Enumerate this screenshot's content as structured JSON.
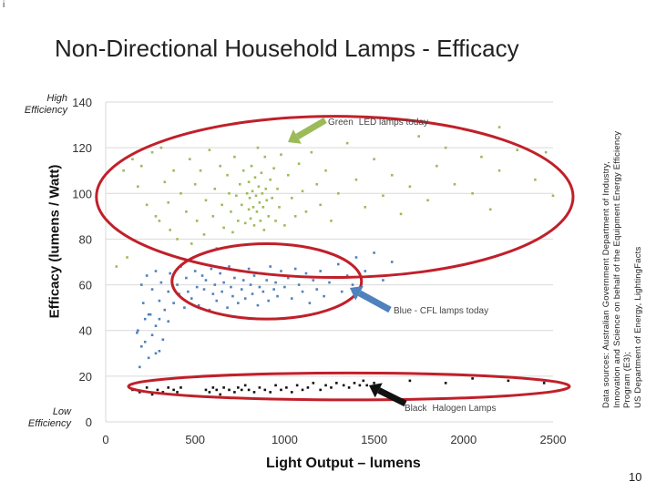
{
  "slide": {
    "corner_mark": "i",
    "title": "Non-Directional Household Lamps - Efficacy",
    "high_efficiency_label": "High Efficiency",
    "low_efficiency_label": "Low Efficiency",
    "sources_line1": "Data sources: Australian Government Department of Industry,",
    "sources_line2": "Innovation and Science on behalf of the Equipment Energy Efficiency",
    "sources_line3": "Program (E3);",
    "sources_line4": "US Department of Energy, LightingFacts",
    "page_number": "10"
  },
  "colors": {
    "green": "#9bbb59",
    "blue": "#4f81bd",
    "black": "#111111",
    "ellipse": "#c0202a",
    "grid": "#d9d9d9"
  },
  "chart_data": {
    "type": "scatter",
    "title": "",
    "xlabel": "Light Output – lumens",
    "ylabel": "Efficacy (lumens / Watt)",
    "xlim": [
      0,
      2500
    ],
    "ylim": [
      0,
      140
    ],
    "xticks": [
      0,
      500,
      1000,
      1500,
      2000,
      2500
    ],
    "yticks": [
      0,
      20,
      40,
      60,
      80,
      100,
      120,
      140
    ],
    "grid": true,
    "series": [
      {
        "name": "Green LED lamps today",
        "legend_prefix": "Green",
        "legend_text": "LED lamps today",
        "color_key": "green",
        "centroid": [
          800,
          98
        ],
        "points": [
          [
            100,
            110
          ],
          [
            150,
            115
          ],
          [
            180,
            103
          ],
          [
            200,
            112
          ],
          [
            230,
            95
          ],
          [
            260,
            118
          ],
          [
            280,
            90
          ],
          [
            300,
            88
          ],
          [
            310,
            120
          ],
          [
            330,
            105
          ],
          [
            350,
            96
          ],
          [
            360,
            84
          ],
          [
            380,
            110
          ],
          [
            400,
            80
          ],
          [
            420,
            100
          ],
          [
            450,
            92
          ],
          [
            470,
            115
          ],
          [
            480,
            78
          ],
          [
            500,
            104
          ],
          [
            510,
            88
          ],
          [
            530,
            110
          ],
          [
            550,
            82
          ],
          [
            560,
            97
          ],
          [
            580,
            119
          ],
          [
            600,
            90
          ],
          [
            610,
            102
          ],
          [
            620,
            76
          ],
          [
            640,
            112
          ],
          [
            650,
            95
          ],
          [
            660,
            85
          ],
          [
            680,
            108
          ],
          [
            690,
            100
          ],
          [
            700,
            92
          ],
          [
            710,
            83
          ],
          [
            720,
            116
          ],
          [
            730,
            99
          ],
          [
            740,
            88
          ],
          [
            750,
            104
          ],
          [
            760,
            95
          ],
          [
            770,
            110
          ],
          [
            780,
            87
          ],
          [
            790,
            100
          ],
          [
            800,
            93
          ],
          [
            800,
            105
          ],
          [
            805,
            98
          ],
          [
            810,
            89
          ],
          [
            815,
            112
          ],
          [
            820,
            101
          ],
          [
            825,
            94
          ],
          [
            830,
            86
          ],
          [
            835,
            107
          ],
          [
            840,
            99
          ],
          [
            845,
            92
          ],
          [
            850,
            120
          ],
          [
            855,
            103
          ],
          [
            860,
            96
          ],
          [
            865,
            88
          ],
          [
            870,
            109
          ],
          [
            875,
            100
          ],
          [
            880,
            94
          ],
          [
            885,
            84
          ],
          [
            890,
            116
          ],
          [
            895,
            102
          ],
          [
            900,
            97
          ],
          [
            910,
            90
          ],
          [
            920,
            106
          ],
          [
            930,
            98
          ],
          [
            940,
            111
          ],
          [
            950,
            88
          ],
          [
            960,
            102
          ],
          [
            970,
            94
          ],
          [
            980,
            117
          ],
          [
            1000,
            86
          ],
          [
            1020,
            108
          ],
          [
            1040,
            98
          ],
          [
            1060,
            90
          ],
          [
            1080,
            113
          ],
          [
            1100,
            101
          ],
          [
            1120,
            92
          ],
          [
            1150,
            118
          ],
          [
            1180,
            104
          ],
          [
            1200,
            95
          ],
          [
            1230,
            110
          ],
          [
            1260,
            88
          ],
          [
            1300,
            100
          ],
          [
            1350,
            122
          ],
          [
            1400,
            106
          ],
          [
            1450,
            94
          ],
          [
            1500,
            115
          ],
          [
            1550,
            99
          ],
          [
            1600,
            108
          ],
          [
            1650,
            91
          ],
          [
            1700,
            103
          ],
          [
            1750,
            125
          ],
          [
            1800,
            97
          ],
          [
            1850,
            112
          ],
          [
            1900,
            120
          ],
          [
            1950,
            104
          ],
          [
            2000,
            128
          ],
          [
            2050,
            100
          ],
          [
            2100,
            116
          ],
          [
            2150,
            93
          ],
          [
            2200,
            110
          ],
          [
            2300,
            119
          ],
          [
            2400,
            106
          ],
          [
            2500,
            99
          ],
          [
            2200,
            129
          ],
          [
            2460,
            118
          ],
          [
            60,
            68
          ],
          [
            120,
            72
          ]
        ]
      },
      {
        "name": "Blue - CFL lamps today",
        "legend_text": "Blue - CFL lamps today",
        "color_key": "blue",
        "centroid": [
          600,
          58
        ],
        "points": [
          [
            200,
            60
          ],
          [
            210,
            52
          ],
          [
            230,
            64
          ],
          [
            240,
            47
          ],
          [
            260,
            58
          ],
          [
            280,
            66
          ],
          [
            300,
            53
          ],
          [
            310,
            61
          ],
          [
            330,
            49
          ],
          [
            350,
            57
          ],
          [
            360,
            65
          ],
          [
            380,
            52
          ],
          [
            400,
            60
          ],
          [
            410,
            56
          ],
          [
            420,
            68
          ],
          [
            440,
            50
          ],
          [
            450,
            63
          ],
          [
            460,
            57
          ],
          [
            480,
            54
          ],
          [
            500,
            66
          ],
          [
            510,
            59
          ],
          [
            520,
            51
          ],
          [
            540,
            64
          ],
          [
            550,
            58
          ],
          [
            560,
            62
          ],
          [
            580,
            49
          ],
          [
            590,
            67
          ],
          [
            600,
            56
          ],
          [
            610,
            60
          ],
          [
            620,
            53
          ],
          [
            640,
            65
          ],
          [
            650,
            57
          ],
          [
            660,
            61
          ],
          [
            680,
            50
          ],
          [
            690,
            68
          ],
          [
            700,
            59
          ],
          [
            710,
            55
          ],
          [
            720,
            63
          ],
          [
            740,
            52
          ],
          [
            750,
            66
          ],
          [
            760,
            58
          ],
          [
            770,
            62
          ],
          [
            780,
            54
          ],
          [
            800,
            67
          ],
          [
            810,
            60
          ],
          [
            820,
            56
          ],
          [
            830,
            64
          ],
          [
            850,
            51
          ],
          [
            860,
            59
          ],
          [
            870,
            65
          ],
          [
            880,
            57
          ],
          [
            900,
            62
          ],
          [
            910,
            53
          ],
          [
            920,
            68
          ],
          [
            940,
            58
          ],
          [
            950,
            61
          ],
          [
            960,
            55
          ],
          [
            980,
            66
          ],
          [
            1000,
            59
          ],
          [
            1020,
            63
          ],
          [
            1040,
            54
          ],
          [
            1060,
            67
          ],
          [
            1080,
            60
          ],
          [
            1100,
            57
          ],
          [
            1120,
            65
          ],
          [
            1140,
            52
          ],
          [
            1160,
            62
          ],
          [
            1180,
            58
          ],
          [
            1200,
            66
          ],
          [
            1220,
            55
          ],
          [
            1250,
            61
          ],
          [
            1300,
            69
          ],
          [
            1320,
            57
          ],
          [
            1350,
            64
          ],
          [
            1380,
            60
          ],
          [
            1400,
            72
          ],
          [
            1450,
            66
          ],
          [
            1500,
            74
          ],
          [
            1550,
            62
          ],
          [
            1600,
            70
          ],
          [
            180,
            40
          ],
          [
            200,
            33
          ],
          [
            220,
            45
          ],
          [
            240,
            28
          ],
          [
            260,
            38
          ],
          [
            280,
            42
          ],
          [
            300,
            31
          ],
          [
            320,
            36
          ],
          [
            190,
            24
          ],
          [
            350,
            44
          ],
          [
            250,
            47
          ],
          [
            220,
            35
          ],
          [
            300,
            45
          ],
          [
            175,
            39
          ],
          [
            280,
            30
          ]
        ]
      },
      {
        "name": "Black Halogen Lamps",
        "legend_prefix": "Black",
        "legend_text": "Halogen Lamps",
        "color_key": "black",
        "centroid": [
          1100,
          14
        ],
        "points": [
          [
            150,
            14
          ],
          [
            190,
            13
          ],
          [
            230,
            15
          ],
          [
            260,
            12
          ],
          [
            290,
            14
          ],
          [
            320,
            13
          ],
          [
            350,
            15
          ],
          [
            380,
            14
          ],
          [
            400,
            13
          ],
          [
            420,
            15
          ],
          [
            560,
            14
          ],
          [
            580,
            13
          ],
          [
            600,
            15
          ],
          [
            620,
            14
          ],
          [
            640,
            12
          ],
          [
            660,
            15
          ],
          [
            690,
            14
          ],
          [
            720,
            13
          ],
          [
            740,
            15
          ],
          [
            760,
            14
          ],
          [
            780,
            16
          ],
          [
            800,
            14
          ],
          [
            830,
            13
          ],
          [
            860,
            15
          ],
          [
            890,
            14
          ],
          [
            920,
            13
          ],
          [
            950,
            16
          ],
          [
            980,
            14
          ],
          [
            1010,
            15
          ],
          [
            1040,
            13
          ],
          [
            1070,
            16
          ],
          [
            1100,
            14
          ],
          [
            1130,
            15
          ],
          [
            1160,
            17
          ],
          [
            1200,
            14
          ],
          [
            1230,
            16
          ],
          [
            1260,
            15
          ],
          [
            1290,
            17
          ],
          [
            1330,
            16
          ],
          [
            1360,
            15
          ],
          [
            1390,
            17
          ],
          [
            1420,
            16
          ],
          [
            1440,
            18
          ],
          [
            1460,
            16
          ],
          [
            1500,
            17
          ],
          [
            1700,
            18
          ],
          [
            1900,
            17
          ],
          [
            2050,
            19
          ],
          [
            2250,
            18
          ],
          [
            2450,
            17
          ]
        ]
      }
    ],
    "highlight_ellipses": [
      "LED cluster",
      "CFL cluster",
      "Halogen cluster"
    ]
  }
}
